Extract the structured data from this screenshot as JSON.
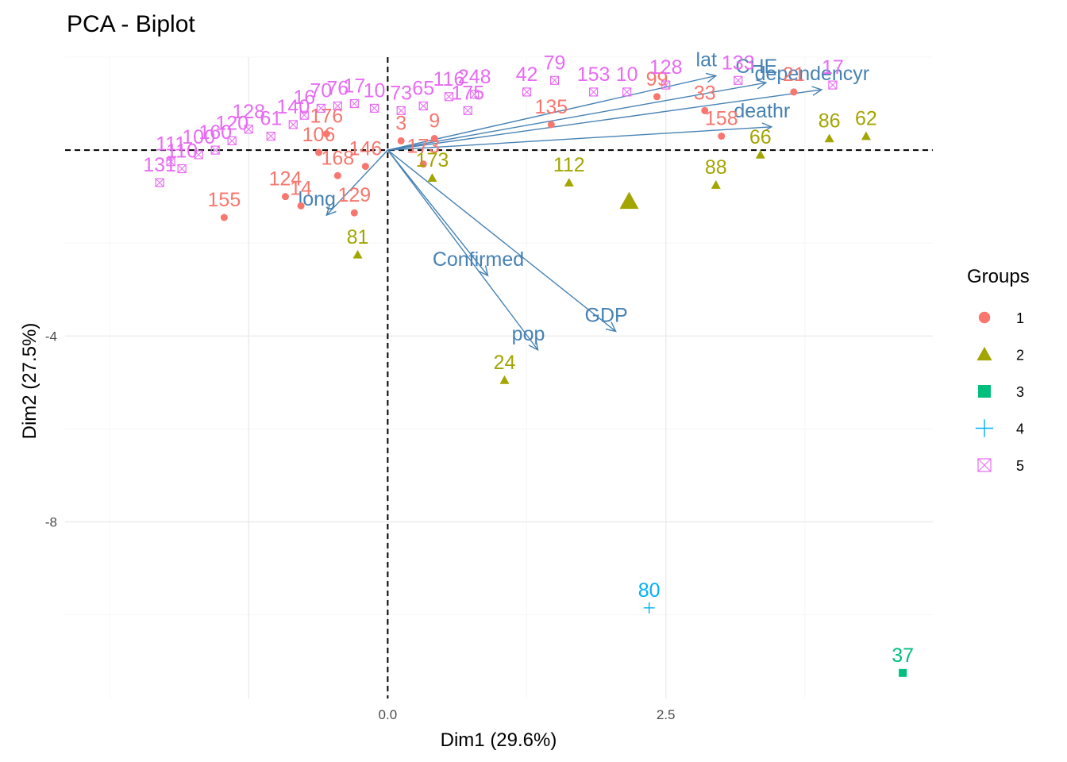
{
  "chart_data": {
    "type": "scatter",
    "title": "PCA - Biplot",
    "xlabel": "Dim1 (29.6%)",
    "ylabel": "Dim2 (27.5%)",
    "xlim": [
      -2.9,
      4.9
    ],
    "ylim": [
      -11.8,
      2.0
    ],
    "x_ticks": [
      {
        "value": 0,
        "label": "0.0"
      },
      {
        "value": 2.5,
        "label": "2.5"
      }
    ],
    "y_ticks": [
      {
        "value": -4,
        "label": "-4"
      },
      {
        "value": -8,
        "label": "-8"
      }
    ],
    "grid": true,
    "reference_lines": {
      "x": 0,
      "y": 0,
      "style": "dashed"
    },
    "legend": {
      "title": "Groups",
      "placement": "right",
      "entries": [
        {
          "label": "1",
          "color": "#F8766D",
          "shape": "circle"
        },
        {
          "label": "2",
          "color": "#A3A500",
          "shape": "triangle"
        },
        {
          "label": "3",
          "color": "#00BF7D",
          "shape": "square"
        },
        {
          "label": "4",
          "color": "#00B0F6",
          "shape": "plus"
        },
        {
          "label": "5",
          "color": "#E76BF3",
          "shape": "boxcross"
        }
      ]
    },
    "series": [
      {
        "name": "1",
        "color": "#F8766D",
        "shape": "circle",
        "points": [
          {
            "x": -1.47,
            "y": -1.45,
            "label": "155"
          },
          {
            "x": -0.92,
            "y": -1.0,
            "label": "124"
          },
          {
            "x": -0.78,
            "y": -1.2,
            "label": "14"
          },
          {
            "x": -0.3,
            "y": -1.35,
            "label": "129"
          },
          {
            "x": -0.45,
            "y": -0.55,
            "label": "168"
          },
          {
            "x": -0.2,
            "y": -0.35,
            "label": "146"
          },
          {
            "x": -0.62,
            "y": -0.05,
            "label": "106"
          },
          {
            "x": -0.55,
            "y": 0.35,
            "label": "176"
          },
          {
            "x": 0.12,
            "y": 0.2,
            "label": "3"
          },
          {
            "x": 0.32,
            "y": -0.3,
            "label": "173"
          },
          {
            "x": 0.42,
            "y": 0.25,
            "label": "9"
          },
          {
            "x": 2.42,
            "y": 1.15,
            "label": "99"
          },
          {
            "x": 2.85,
            "y": 0.85,
            "label": "33"
          },
          {
            "x": 3.0,
            "y": 0.3,
            "label": "158"
          },
          {
            "x": 3.65,
            "y": 1.25,
            "label": "21"
          },
          {
            "x": 1.47,
            "y": 0.55,
            "label": "135"
          }
        ]
      },
      {
        "name": "2",
        "color": "#A3A500",
        "shape": "triangle",
        "points": [
          {
            "x": 4.3,
            "y": 0.3,
            "label": "62"
          },
          {
            "x": 3.97,
            "y": 0.25,
            "label": "86"
          },
          {
            "x": 3.35,
            "y": -0.1,
            "label": "66"
          },
          {
            "x": 2.95,
            "y": -0.75,
            "label": "88"
          },
          {
            "x": 1.63,
            "y": -0.7,
            "label": "112"
          },
          {
            "x": 0.4,
            "y": -0.6,
            "label": "173"
          },
          {
            "x": -0.27,
            "y": -2.25,
            "label": "81"
          },
          {
            "x": 1.05,
            "y": -4.95,
            "label": "24"
          }
        ]
      },
      {
        "name": "3",
        "color": "#00BF7D",
        "shape": "square",
        "points": [
          {
            "x": 4.63,
            "y": -11.25,
            "label": "37"
          }
        ]
      },
      {
        "name": "4",
        "color": "#00B0F6",
        "shape": "plus",
        "points": [
          {
            "x": 2.35,
            "y": -9.85,
            "label": "80"
          }
        ]
      },
      {
        "name": "5",
        "color": "#E76BF3",
        "shape": "boxcross",
        "points": [
          {
            "x": -2.05,
            "y": -0.7,
            "label": "131"
          },
          {
            "x": -1.95,
            "y": -0.25,
            "label": "111"
          },
          {
            "x": -1.85,
            "y": -0.4,
            "label": "110"
          },
          {
            "x": -1.7,
            "y": -0.1,
            "label": "100"
          },
          {
            "x": -1.55,
            "y": 0.0,
            "label": "160"
          },
          {
            "x": -1.4,
            "y": 0.2,
            "label": "120"
          },
          {
            "x": -1.25,
            "y": 0.45,
            "label": "128"
          },
          {
            "x": -1.05,
            "y": 0.3,
            "label": "61"
          },
          {
            "x": -0.85,
            "y": 0.55,
            "label": "140"
          },
          {
            "x": -0.75,
            "y": 0.75,
            "label": "16"
          },
          {
            "x": -0.6,
            "y": 0.9,
            "label": "70"
          },
          {
            "x": -0.45,
            "y": 0.95,
            "label": "76"
          },
          {
            "x": -0.3,
            "y": 1.0,
            "label": "17"
          },
          {
            "x": -0.12,
            "y": 0.9,
            "label": "10"
          },
          {
            "x": 0.12,
            "y": 0.85,
            "label": "73"
          },
          {
            "x": 0.32,
            "y": 0.95,
            "label": "65"
          },
          {
            "x": 0.55,
            "y": 1.15,
            "label": "116"
          },
          {
            "x": 0.78,
            "y": 1.2,
            "label": "248"
          },
          {
            "x": 0.72,
            "y": 0.85,
            "label": "175"
          },
          {
            "x": 1.25,
            "y": 1.25,
            "label": "42"
          },
          {
            "x": 1.5,
            "y": 1.5,
            "label": "79"
          },
          {
            "x": 1.85,
            "y": 1.25,
            "label": "153"
          },
          {
            "x": 2.15,
            "y": 1.25,
            "label": "10"
          },
          {
            "x": 2.5,
            "y": 1.4,
            "label": "128"
          },
          {
            "x": 3.15,
            "y": 1.5,
            "label": "133"
          },
          {
            "x": 4.0,
            "y": 1.4,
            "label": "17"
          }
        ]
      }
    ],
    "variables": [
      {
        "name": "lat",
        "x": 2.95,
        "y": 1.6
      },
      {
        "name": "CHE",
        "x": 3.4,
        "y": 1.45
      },
      {
        "name": "dependencyr",
        "x": 3.9,
        "y": 1.3
      },
      {
        "name": "deathr",
        "x": 3.45,
        "y": 0.5
      },
      {
        "name": "long",
        "x": -0.55,
        "y": -1.4
      },
      {
        "name": "Confirmed",
        "x": 0.9,
        "y": -2.7
      },
      {
        "name": "GDP",
        "x": 2.05,
        "y": -3.9
      },
      {
        "name": "pop",
        "x": 1.35,
        "y": -4.3
      }
    ],
    "group_centroids": [
      {
        "group": "2",
        "x": 2.17,
        "y": -1.1
      }
    ]
  }
}
